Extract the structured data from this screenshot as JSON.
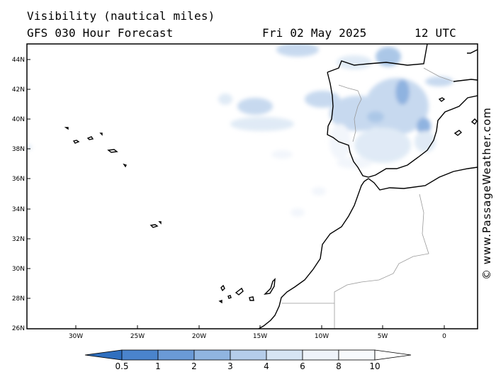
{
  "title": {
    "variable": "Visibility (nautical miles)",
    "model": "GFS 030 Hour Forecast",
    "date": "Fri 02 May 2025",
    "time": "12 UTC"
  },
  "credit": "© www.PassageWeather.com",
  "axes": {
    "lat_labels": [
      "44N",
      "42N",
      "40N",
      "38N",
      "36N",
      "34N",
      "32N",
      "30N",
      "28N",
      "26N"
    ],
    "lon_labels": [
      "30W",
      "25W",
      "20W",
      "15W",
      "10W",
      "5W",
      "0"
    ]
  },
  "colorbar": {
    "labels": [
      "0.5",
      "1",
      "2",
      "3",
      "4",
      "6",
      "8",
      "10"
    ],
    "colors": [
      "#2f6fbf",
      "#4a84cc",
      "#6a9ad6",
      "#90b5e0",
      "#b5cdea",
      "#d6e4f3",
      "#eef3fa",
      "#ffffff"
    ]
  },
  "map": {
    "region": "Iberia, Morocco and Atlantic islands",
    "land_outline_color": "#000000",
    "border_color": "#999999",
    "haze_color": "#90b5e0"
  }
}
